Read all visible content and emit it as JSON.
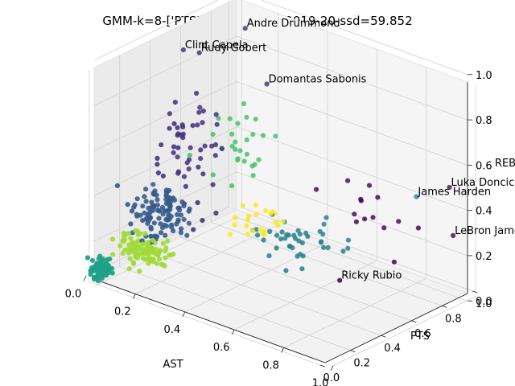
{
  "chart_data": {
    "type": "scatter",
    "title": "GMM-k=8-['PTS', 'REB', 'AST']-2019-20-ssd=59.852",
    "xlabel": "AST",
    "ylabel": "PTS",
    "zlabel": "REB",
    "xlim": [
      0,
      1
    ],
    "ylim": [
      0,
      1
    ],
    "zlim": [
      0,
      1
    ],
    "x_ticks": [
      "0.0",
      "0.2",
      "0.4",
      "0.6",
      "0.8",
      "1.0"
    ],
    "y_ticks": [
      "0.0",
      "0.2",
      "0.4",
      "0.6",
      "0.8",
      "1.0"
    ],
    "z_ticks": [
      "0.0",
      "0.2",
      "0.4",
      "0.6",
      "0.8",
      "1.0"
    ],
    "grid": true,
    "colors": [
      "#440154",
      "#46337e",
      "#365c8d",
      "#277f8e",
      "#1fa187",
      "#4ac16d",
      "#a0da39",
      "#fde725"
    ],
    "annotations": [
      {
        "label": "Andre Drummond",
        "x": 0.22,
        "y": 0.72,
        "z": 0.99
      },
      {
        "label": "Clint Capela",
        "x": 0.05,
        "y": 0.59,
        "z": 0.87
      },
      {
        "label": "Rudy Gobert",
        "x": 0.09,
        "y": 0.63,
        "z": 0.86
      },
      {
        "label": "Domantas Sabonis",
        "x": 0.32,
        "y": 0.7,
        "z": 0.79
      },
      {
        "label": "Luka Doncic",
        "x": 0.88,
        "y": 0.99,
        "z": 0.46
      },
      {
        "label": "James Harden",
        "x": 0.74,
        "y": 1.0,
        "z": 0.36
      },
      {
        "label": "LeBron James",
        "x": 1.0,
        "y": 0.82,
        "z": 0.35
      },
      {
        "label": "Ricky Rubio",
        "x": 0.8,
        "y": 0.4,
        "z": 0.21
      }
    ],
    "clusters": [
      {
        "center": [
          0.68,
          0.72,
          0.38
        ],
        "spread": [
          0.14,
          0.16,
          0.12
        ],
        "count": 14
      },
      {
        "center": [
          0.18,
          0.42,
          0.5
        ],
        "spread": [
          0.1,
          0.15,
          0.18
        ],
        "count": 55
      },
      {
        "center": [
          0.16,
          0.25,
          0.3
        ],
        "spread": [
          0.09,
          0.1,
          0.09
        ],
        "count": 110
      },
      {
        "center": [
          0.55,
          0.55,
          0.22
        ],
        "spread": [
          0.15,
          0.15,
          0.07
        ],
        "count": 42
      },
      {
        "center": [
          0.05,
          0.05,
          0.08
        ],
        "spread": [
          0.03,
          0.04,
          0.04
        ],
        "count": 85
      },
      {
        "center": [
          0.3,
          0.55,
          0.55
        ],
        "spread": [
          0.12,
          0.14,
          0.15
        ],
        "count": 28
      },
      {
        "center": [
          0.14,
          0.18,
          0.16
        ],
        "spread": [
          0.08,
          0.08,
          0.06
        ],
        "count": 100
      },
      {
        "center": [
          0.4,
          0.45,
          0.3
        ],
        "spread": [
          0.1,
          0.12,
          0.07
        ],
        "count": 22
      }
    ]
  }
}
